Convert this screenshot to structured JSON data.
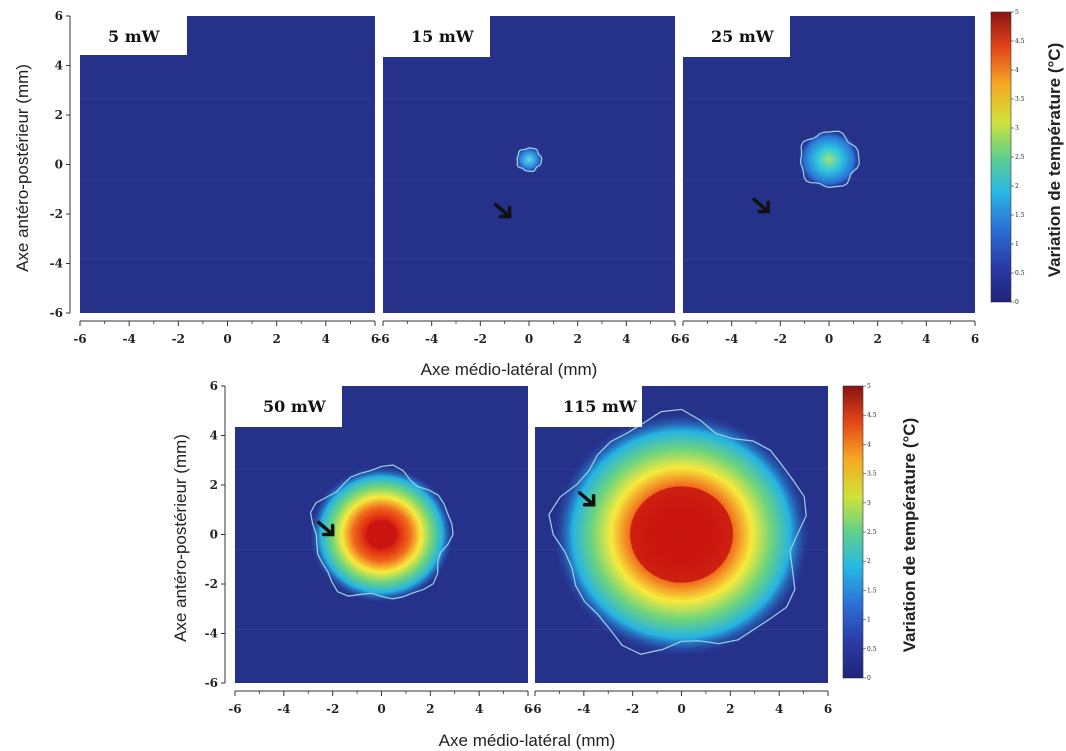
{
  "chart_data": {
    "type": "heatmap",
    "x_range": [
      -6,
      6
    ],
    "y_range": [
      -6,
      6
    ],
    "x_ticks": [
      "-6",
      "-4",
      "-2",
      "0",
      "2",
      "4",
      "6"
    ],
    "y_ticks": [
      "-6",
      "-4",
      "-2",
      "0",
      "2",
      "4",
      "6"
    ],
    "colorbar_range": [
      0,
      5
    ],
    "colorbar_ticks": [
      "0",
      "0.5",
      "1",
      "1.5",
      "2",
      "2.5",
      "3",
      "3.5",
      "4",
      "4.5",
      "5"
    ],
    "colorbar_label": "Variation de température (°C)",
    "xlabel": "Axe médio-latéral (mm)",
    "ylabel": "Axe antéro-postérieur (mm)",
    "panels": [
      {
        "title": "5 mW",
        "peak": 0.3,
        "center": [
          0,
          0
        ],
        "hot_radius_mm": 0.0,
        "contour_radius_mm": 0.0,
        "arrow": null
      },
      {
        "title": "15 mW",
        "peak": 1.5,
        "center": [
          0,
          0.2
        ],
        "hot_radius_mm": 0.2,
        "contour_radius_mm": 0.5,
        "arrow": [
          -0.8,
          -2.1
        ]
      },
      {
        "title": "25 mW",
        "peak": 2.3,
        "center": [
          0,
          0.2
        ],
        "hot_radius_mm": 0.4,
        "contour_radius_mm": 1.2,
        "arrow": [
          -2.5,
          -1.9
        ]
      },
      {
        "title": "50 mW",
        "peak": 5.0,
        "center": [
          0,
          0
        ],
        "hot_radius_mm": 1.0,
        "contour_radius_mm": 2.8,
        "arrow": [
          -2.0,
          0.0
        ]
      },
      {
        "title": "115 mW",
        "peak": 5.0,
        "center": [
          0,
          0
        ],
        "hot_radius_mm": 3.4,
        "contour_radius_mm": 5.0,
        "arrow": [
          -3.6,
          1.2
        ]
      }
    ]
  }
}
